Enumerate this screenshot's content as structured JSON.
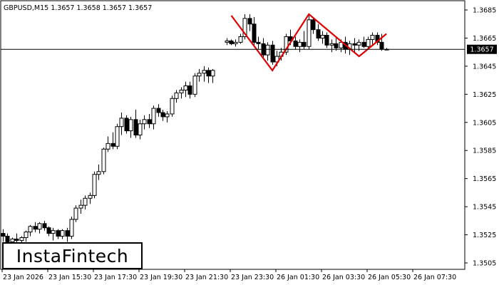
{
  "chart_data": {
    "type": "candlestick",
    "symbol_header": "GBPUSD,M15  1.3657 1.3658 1.3657 1.3657",
    "current_price_label": "1.3657",
    "current_price": 1.3657,
    "ylim": [
      1.3495,
      1.369
    ],
    "y_ticks": [
      "1.3685",
      "1.3665",
      "1.3645",
      "1.3625",
      "1.3605",
      "1.3585",
      "1.3565",
      "1.3545",
      "1.3525",
      "1.3505"
    ],
    "x_tick_labels": [
      "23 Jan 2026",
      "23 Jan 15:30",
      "23 Jan 17:30",
      "23 Jan 19:30",
      "23 Jan 21:30",
      "23 Jan 23:30",
      "26 Jan 01:30",
      "26 Jan 03:30",
      "26 Jan 05:30",
      "26 Jan 07:30"
    ],
    "candles": [
      [
        1.3526,
        1.3529,
        1.352,
        1.3524
      ],
      [
        1.3524,
        1.3526,
        1.3518,
        1.352
      ],
      [
        1.352,
        1.3523,
        1.3516,
        1.3522
      ],
      [
        1.3522,
        1.3526,
        1.3519,
        1.3521
      ],
      [
        1.3521,
        1.3524,
        1.3518,
        1.3523
      ],
      [
        1.3523,
        1.3528,
        1.352,
        1.3527
      ],
      [
        1.3527,
        1.3532,
        1.3524,
        1.3531
      ],
      [
        1.3531,
        1.3534,
        1.3527,
        1.3529
      ],
      [
        1.3529,
        1.3534,
        1.3526,
        1.3533
      ],
      [
        1.3533,
        1.3535,
        1.3528,
        1.353
      ],
      [
        1.353,
        1.3531,
        1.3524,
        1.3526
      ],
      [
        1.3526,
        1.353,
        1.3521,
        1.3528
      ],
      [
        1.3528,
        1.3529,
        1.3522,
        1.3524
      ],
      [
        1.3524,
        1.3529,
        1.3522,
        1.3528
      ],
      [
        1.3528,
        1.353,
        1.352,
        1.3524
      ],
      [
        1.3524,
        1.3538,
        1.3522,
        1.3536
      ],
      [
        1.3536,
        1.3546,
        1.3534,
        1.3544
      ],
      [
        1.3544,
        1.355,
        1.354,
        1.3546
      ],
      [
        1.3546,
        1.3553,
        1.3543,
        1.3551
      ],
      [
        1.3551,
        1.3555,
        1.3547,
        1.3553
      ],
      [
        1.3553,
        1.357,
        1.3551,
        1.3568
      ],
      [
        1.3568,
        1.3575,
        1.3564,
        1.357
      ],
      [
        1.357,
        1.3587,
        1.3568,
        1.3586
      ],
      [
        1.3586,
        1.3595,
        1.3584,
        1.359
      ],
      [
        1.359,
        1.3598,
        1.3586,
        1.3588
      ],
      [
        1.3588,
        1.3604,
        1.3586,
        1.3602
      ],
      [
        1.3602,
        1.3612,
        1.3596,
        1.3608
      ],
      [
        1.3608,
        1.361,
        1.3597,
        1.3599
      ],
      [
        1.3599,
        1.3609,
        1.3594,
        1.3607
      ],
      [
        1.3607,
        1.3614,
        1.3594,
        1.3596
      ],
      [
        1.3596,
        1.3607,
        1.3593,
        1.3604
      ],
      [
        1.3604,
        1.361,
        1.36,
        1.3607
      ],
      [
        1.3607,
        1.3611,
        1.3601,
        1.3604
      ],
      [
        1.3604,
        1.3617,
        1.36,
        1.3615
      ],
      [
        1.3615,
        1.3618,
        1.3609,
        1.3612
      ],
      [
        1.3612,
        1.3614,
        1.3606,
        1.3609
      ],
      [
        1.3609,
        1.3613,
        1.3605,
        1.3611
      ],
      [
        1.3611,
        1.3624,
        1.3609,
        1.3622
      ],
      [
        1.3622,
        1.3628,
        1.3619,
        1.3626
      ],
      [
        1.3626,
        1.363,
        1.3622,
        1.3628
      ],
      [
        1.3628,
        1.3634,
        1.3623,
        1.3631
      ],
      [
        1.3631,
        1.3634,
        1.3622,
        1.3625
      ],
      [
        1.3625,
        1.364,
        1.3623,
        1.3638
      ],
      [
        1.3638,
        1.3643,
        1.3634,
        1.364
      ],
      [
        1.364,
        1.3645,
        1.3634,
        1.3642
      ],
      [
        1.3642,
        1.3644,
        1.3633,
        1.3638
      ],
      [
        1.3638,
        1.3643,
        1.3633,
        1.3642
      ],
      null,
      null,
      [
        1.3662,
        1.3665,
        1.366,
        1.3663
      ],
      [
        1.3663,
        1.3664,
        1.366,
        1.3661
      ],
      [
        1.3661,
        1.3664,
        1.3659,
        1.3662
      ],
      [
        1.3662,
        1.3668,
        1.3661,
        1.3666
      ],
      [
        1.3666,
        1.3682,
        1.3664,
        1.3679
      ],
      [
        1.3679,
        1.3682,
        1.367,
        1.3675
      ],
      [
        1.3675,
        1.368,
        1.3659,
        1.3662
      ],
      [
        1.3662,
        1.3666,
        1.3657,
        1.3661
      ],
      [
        1.3661,
        1.3665,
        1.365,
        1.3653
      ],
      [
        1.3653,
        1.3662,
        1.3649,
        1.366
      ],
      [
        1.366,
        1.3663,
        1.3646,
        1.3648
      ],
      [
        1.3648,
        1.3656,
        1.3645,
        1.3652
      ],
      [
        1.3652,
        1.3658,
        1.3649,
        1.3655
      ],
      [
        1.3655,
        1.3668,
        1.3653,
        1.3666
      ],
      [
        1.3666,
        1.3671,
        1.366,
        1.3663
      ],
      [
        1.3663,
        1.3666,
        1.3657,
        1.3659
      ],
      [
        1.3659,
        1.3664,
        1.3655,
        1.3662
      ],
      [
        1.3662,
        1.367,
        1.3657,
        1.3659
      ],
      [
        1.3659,
        1.3682,
        1.3657,
        1.3678
      ],
      [
        1.3678,
        1.368,
        1.3668,
        1.3671
      ],
      [
        1.3671,
        1.3675,
        1.3663,
        1.3665
      ],
      [
        1.3665,
        1.367,
        1.3661,
        1.3667
      ],
      [
        1.3667,
        1.3669,
        1.3658,
        1.366
      ],
      [
        1.366,
        1.3664,
        1.3655,
        1.3661
      ],
      [
        1.3661,
        1.3665,
        1.3656,
        1.3658
      ],
      [
        1.3658,
        1.3664,
        1.3655,
        1.3662
      ],
      [
        1.3662,
        1.3666,
        1.3654,
        1.3657
      ],
      [
        1.3657,
        1.3663,
        1.3653,
        1.3661
      ],
      [
        1.3661,
        1.3665,
        1.3655,
        1.366
      ],
      [
        1.366,
        1.3664,
        1.3656,
        1.3662
      ],
      [
        1.3662,
        1.3666,
        1.3658,
        1.3659
      ],
      [
        1.3659,
        1.3666,
        1.3657,
        1.3664
      ],
      [
        1.3664,
        1.3669,
        1.366,
        1.3667
      ],
      [
        1.3667,
        1.3669,
        1.366,
        1.3662
      ],
      [
        1.3662,
        1.3668,
        1.3656,
        1.3657
      ],
      [
        1.3657,
        1.3658,
        1.3657,
        1.3657
      ]
    ],
    "pattern": {
      "color": "#e00000",
      "points": [
        {
          "i": 50,
          "price": 1.3681
        },
        {
          "i": 59,
          "price": 1.3642
        },
        {
          "i": 67,
          "price": 1.3682
        },
        {
          "i": 78,
          "price": 1.3652
        },
        {
          "i": 84,
          "price": 1.3668
        }
      ]
    },
    "colors": {
      "candle": "#000000",
      "up_body": "#ffffff",
      "down_body": "#000000",
      "pattern": "#e00000"
    },
    "grid": false
  },
  "logo": {
    "text": "InstaFintech"
  }
}
